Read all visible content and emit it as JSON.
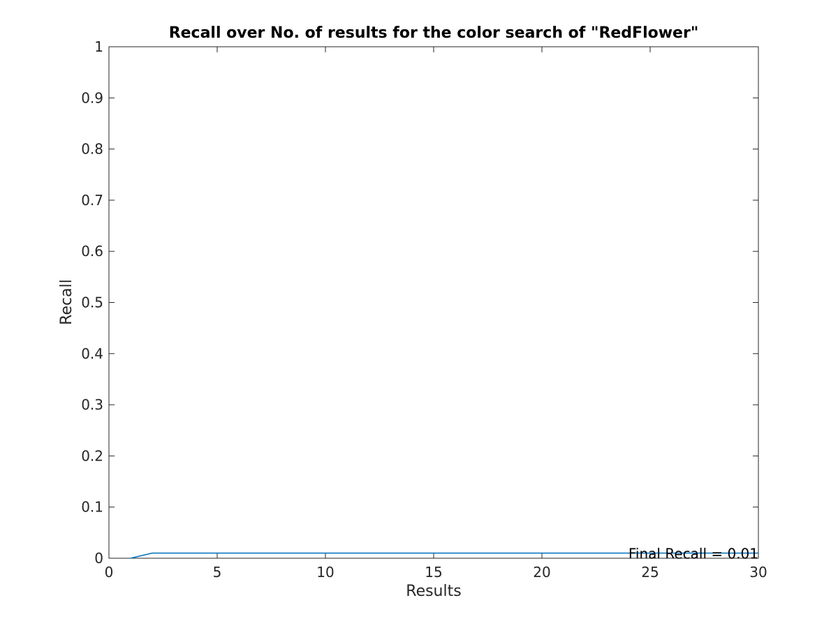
{
  "chart_data": {
    "type": "line",
    "title": "Recall over No. of results for the color search of \"RedFlower\"",
    "xlabel": "Results",
    "ylabel": "Recall",
    "xlim": [
      0,
      30
    ],
    "ylim": [
      0,
      1
    ],
    "xticks": [
      0,
      5,
      10,
      15,
      20,
      25,
      30
    ],
    "xtick_labels": [
      "0",
      "5",
      "10",
      "15",
      "20",
      "25",
      "30"
    ],
    "yticks": [
      0,
      0.1,
      0.2,
      0.3,
      0.4,
      0.5,
      0.6,
      0.7,
      0.8,
      0.9,
      1
    ],
    "ytick_labels": [
      "0",
      "0.1",
      "0.2",
      "0.3",
      "0.4",
      "0.5",
      "0.6",
      "0.7",
      "0.8",
      "0.9",
      "1"
    ],
    "grid": false,
    "series": [
      {
        "color": "#0072bd",
        "x": [
          1,
          2,
          3,
          4,
          5,
          6,
          7,
          8,
          9,
          10,
          11,
          12,
          13,
          14,
          15,
          16,
          17,
          18,
          19,
          20,
          21,
          22,
          23,
          24,
          25,
          26,
          27,
          28,
          29,
          30
        ],
        "values": [
          0,
          0.01,
          0.01,
          0.01,
          0.01,
          0.01,
          0.01,
          0.01,
          0.01,
          0.01,
          0.01,
          0.01,
          0.01,
          0.01,
          0.01,
          0.01,
          0.01,
          0.01,
          0.01,
          0.01,
          0.01,
          0.01,
          0.01,
          0.01,
          0.01,
          0.01,
          0.01,
          0.01,
          0.01,
          0.01
        ]
      }
    ],
    "annotations": [
      {
        "text": "Final Recall = 0.01",
        "x": 30,
        "y": 0.01,
        "anchor": "end"
      }
    ]
  }
}
